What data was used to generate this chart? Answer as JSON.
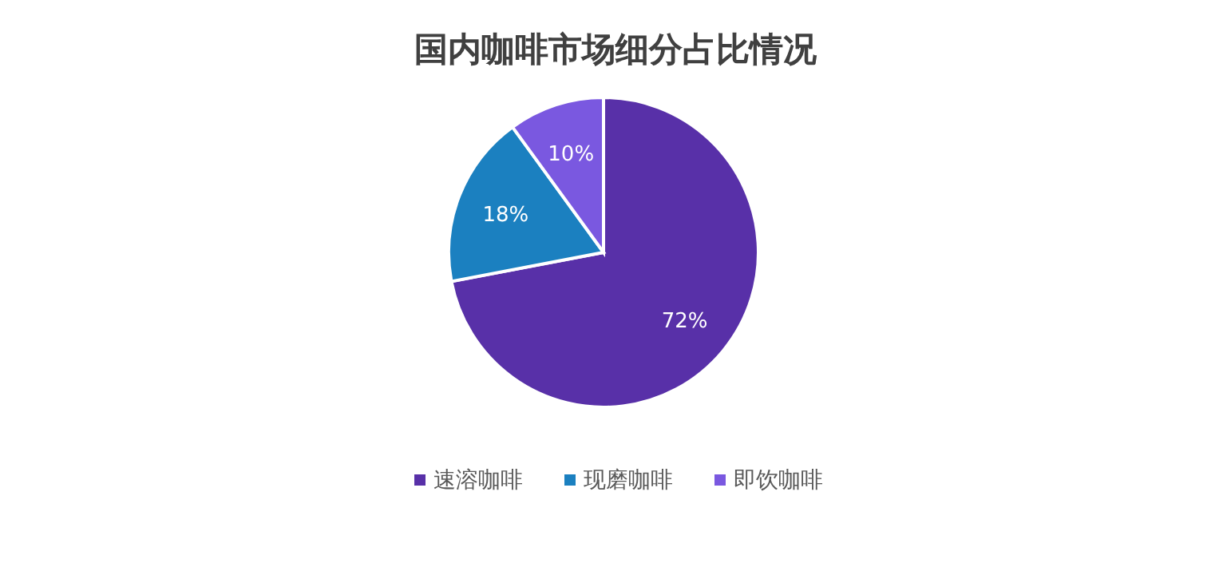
{
  "chart_data": {
    "type": "pie",
    "title": "国内咖啡市场细分占比情况",
    "categories": [
      "速溶咖啡",
      "现磨咖啡",
      "即饮咖啡"
    ],
    "values": [
      72,
      18,
      10
    ],
    "value_labels": [
      "72%",
      "18%",
      "10%"
    ],
    "colors": [
      "#5830a8",
      "#1b80c0",
      "#7a58e0"
    ],
    "legend": "bottom"
  }
}
